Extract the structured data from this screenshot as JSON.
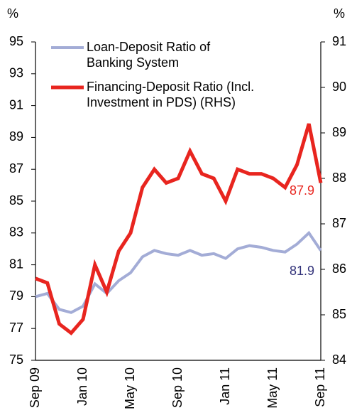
{
  "chart_data": {
    "type": "line",
    "ylabel": "%",
    "y2label": "%",
    "categories": [
      "Sep 09",
      null,
      null,
      null,
      "Jan 10",
      null,
      null,
      null,
      "May 10",
      null,
      null,
      null,
      "Sep 10",
      null,
      null,
      null,
      "Jan 11",
      null,
      null,
      null,
      "May 11",
      null,
      null,
      null,
      "Sep 11"
    ],
    "series": [
      {
        "name": "Loan-Deposit Ratio of Banking System",
        "color": "#a3acd6",
        "axis": "y",
        "label_color": "#33337a",
        "values": [
          79.0,
          79.2,
          78.2,
          78.0,
          78.4,
          79.8,
          79.2,
          80.0,
          80.5,
          81.5,
          81.9,
          81.7,
          81.6,
          81.9,
          81.6,
          81.7,
          81.4,
          82.0,
          82.2,
          82.1,
          81.9,
          81.8,
          82.3,
          83.0,
          81.9
        ]
      },
      {
        "name": "Financing-Deposit Ratio (Incl. Investment in PDS) (RHS)",
        "color": "#e8251f",
        "axis": "y2",
        "label_color": "#e8251f",
        "values": [
          85.8,
          85.7,
          84.8,
          84.6,
          84.9,
          86.1,
          85.5,
          86.4,
          86.8,
          87.8,
          88.2,
          87.9,
          88.0,
          88.6,
          88.1,
          88.0,
          87.5,
          88.2,
          88.1,
          88.1,
          88.0,
          87.8,
          88.3,
          89.2,
          87.9
        ]
      }
    ],
    "ylim": [
      75,
      95
    ],
    "yticks": [
      75,
      77,
      79,
      81,
      83,
      85,
      87,
      89,
      91,
      93,
      95
    ],
    "y2lim": [
      84,
      91
    ],
    "y2ticks": [
      84,
      85,
      86,
      87,
      88,
      89,
      90,
      91
    ],
    "legend": "upper left",
    "grid": false
  }
}
